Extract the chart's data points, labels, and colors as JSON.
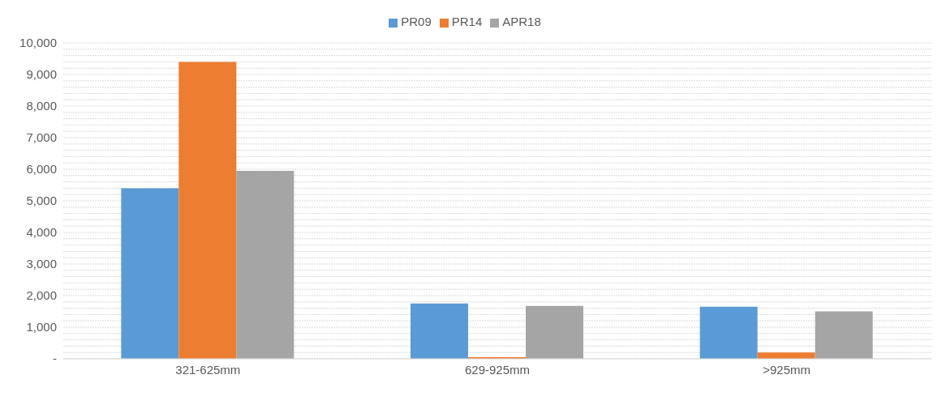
{
  "chart_data": {
    "type": "bar",
    "categories": [
      "321-625mm",
      "629-925mm",
      ">925mm"
    ],
    "series": [
      {
        "name": "PR09",
        "color": "#5b9bd5",
        "values": [
          5400,
          1750,
          1650
        ]
      },
      {
        "name": "PR14",
        "color": "#ed7d31",
        "values": [
          9400,
          50,
          200
        ]
      },
      {
        "name": "APR18",
        "color": "#a5a5a5",
        "values": [
          5950,
          1670,
          1500
        ]
      }
    ],
    "ylim": [
      0,
      10000
    ],
    "yticks": [
      {
        "value": 0,
        "label": "-"
      },
      {
        "value": 200,
        "label": null
      },
      {
        "value": 400,
        "label": null
      },
      {
        "value": 600,
        "label": null
      },
      {
        "value": 800,
        "label": null
      },
      "1,000",
      {
        "value": 1200,
        "label": null
      },
      {
        "value": 1400,
        "label": null
      },
      {
        "value": 1600,
        "label": null
      },
      {
        "value": 1800,
        "label": null
      },
      {
        "value": 2000,
        "label": "2,000"
      },
      {
        "value": 2200,
        "label": null
      },
      {
        "value": 2400,
        "label": null
      },
      {
        "value": 2600,
        "label": null
      },
      {
        "value": 2800,
        "label": null
      },
      {
        "value": 3000,
        "label": "3,000"
      },
      {
        "value": 3200,
        "label": null
      },
      {
        "value": 3400,
        "label": null
      },
      {
        "value": 3600,
        "label": null
      },
      {
        "value": 3800,
        "label": null
      },
      {
        "value": 4000,
        "label": "4,000"
      },
      {
        "value": 4200,
        "label": null
      },
      {
        "value": 4400,
        "label": null
      },
      {
        "value": 4600,
        "label": null
      },
      {
        "value": 4800,
        "label": null
      },
      {
        "value": 5000,
        "label": "5,000"
      },
      {
        "value": 5200,
        "label": null
      },
      {
        "value": 5400,
        "label": null
      },
      {
        "value": 5600,
        "label": null
      },
      {
        "value": 5800,
        "label": null
      },
      {
        "value": 6000,
        "label": "6,000"
      },
      {
        "value": 6200,
        "label": null
      },
      {
        "value": 6400,
        "label": null
      },
      {
        "value": 6600,
        "label": null
      },
      {
        "value": 6800,
        "label": null
      },
      {
        "value": 7000,
        "label": "7,000"
      },
      {
        "value": 7200,
        "label": null
      },
      {
        "value": 7400,
        "label": null
      },
      {
        "value": 7600,
        "label": null
      },
      {
        "value": 7800,
        "label": null
      },
      {
        "value": 8000,
        "label": "8,000"
      },
      {
        "value": 8200,
        "label": null
      },
      {
        "value": 8400,
        "label": null
      },
      {
        "value": 8600,
        "label": null
      },
      {
        "value": 8800,
        "label": null
      },
      {
        "value": 9000,
        "label": "9,000"
      },
      {
        "value": 9200,
        "label": null
      },
      {
        "value": 9400,
        "label": null
      },
      {
        "value": 9600,
        "label": null
      },
      {
        "value": 9800,
        "label": null
      },
      {
        "value": 10000,
        "label": "10,000"
      }
    ],
    "grid": "y",
    "legend": "top"
  }
}
